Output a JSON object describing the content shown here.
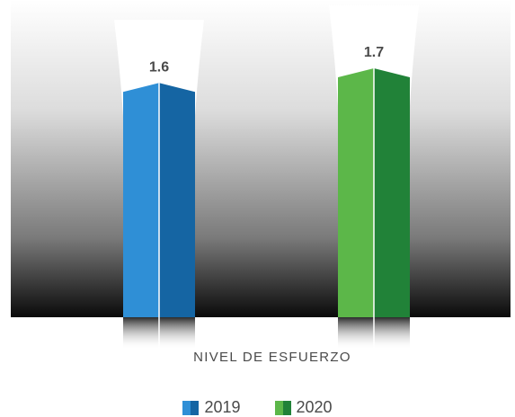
{
  "chart_data": {
    "type": "bar",
    "categories": [
      "2019",
      "2020"
    ],
    "values": [
      1.6,
      1.7
    ],
    "data_labels": [
      "1.6",
      "1.7"
    ],
    "xlabel": "NIVEL DE ESFUERZO",
    "legend": {
      "position": "bottom",
      "entries": [
        "2019",
        "2020"
      ]
    },
    "colors": {
      "2019": {
        "light": "#2f8fd6",
        "dark": "#1565a3"
      },
      "2020": {
        "light": "#5cb749",
        "dark": "#218238"
      }
    },
    "grid": false
  }
}
